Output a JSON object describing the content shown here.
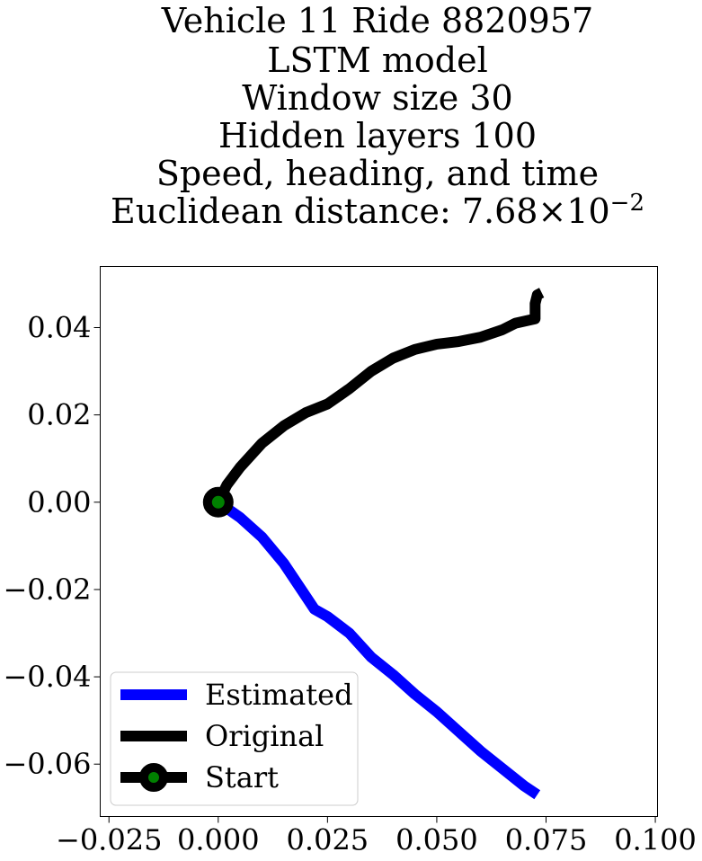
{
  "chart_data": {
    "type": "line",
    "title_lines": [
      "Vehicle 11 Ride 8820957",
      "LSTM model",
      "Window size 30",
      "Hidden layers 100",
      "Speed, heading, and time"
    ],
    "title_metric": {
      "prefix": "Euclidean distance: ",
      "mantissa": "7.68",
      "times": "×",
      "base": "10",
      "exponent": "−2"
    },
    "xlim": [
      -0.027,
      0.1005
    ],
    "ylim": [
      -0.072,
      0.054
    ],
    "x_ticks": [
      {
        "value": -0.025,
        "label": "−0.025"
      },
      {
        "value": 0.0,
        "label": "0.000"
      },
      {
        "value": 0.025,
        "label": "0.025"
      },
      {
        "value": 0.05,
        "label": "0.050"
      },
      {
        "value": 0.075,
        "label": "0.075"
      },
      {
        "value": 0.1,
        "label": "0.100"
      }
    ],
    "y_ticks": [
      {
        "value": 0.04,
        "label": "0.04"
      },
      {
        "value": 0.02,
        "label": "0.02"
      },
      {
        "value": 0.0,
        "label": "0.00"
      },
      {
        "value": -0.02,
        "label": "−0.02"
      },
      {
        "value": -0.04,
        "label": "−0.04"
      },
      {
        "value": -0.06,
        "label": "−0.06"
      }
    ],
    "grid": false,
    "legend_position": "lower-left",
    "series": [
      {
        "name": "Estimated",
        "color": "#0000ff",
        "x": [
          0.0,
          0.005,
          0.01,
          0.015,
          0.02,
          0.022,
          0.025,
          0.03,
          0.035,
          0.04,
          0.045,
          0.05,
          0.055,
          0.06,
          0.065,
          0.07,
          0.073
        ],
        "y": [
          0.0,
          -0.0035,
          -0.008,
          -0.014,
          -0.0215,
          -0.0245,
          -0.0262,
          -0.03,
          -0.0355,
          -0.0395,
          -0.044,
          -0.048,
          -0.0525,
          -0.057,
          -0.061,
          -0.065,
          -0.067
        ]
      },
      {
        "name": "Original",
        "color": "#000000",
        "x": [
          0.0,
          0.002,
          0.005,
          0.01,
          0.015,
          0.02,
          0.025,
          0.03,
          0.035,
          0.04,
          0.045,
          0.05,
          0.055,
          0.06,
          0.065,
          0.068,
          0.0725,
          0.0725,
          0.073,
          0.074
        ],
        "y": [
          0.0,
          0.004,
          0.008,
          0.0135,
          0.0175,
          0.0205,
          0.0225,
          0.026,
          0.03,
          0.033,
          0.035,
          0.0362,
          0.0368,
          0.0378,
          0.0395,
          0.041,
          0.042,
          0.0455,
          0.0475,
          0.048
        ]
      }
    ],
    "start_marker": {
      "name": "Start",
      "x": 0.0,
      "y": 0.0,
      "edge_color": "#000000",
      "face_color": "#008000"
    },
    "legend": [
      {
        "label": "Estimated",
        "kind": "line",
        "color": "#0000ff"
      },
      {
        "label": "Original",
        "kind": "line",
        "color": "#000000"
      },
      {
        "label": "Start",
        "kind": "marker",
        "color": "#000000",
        "face_color": "#008000"
      }
    ]
  }
}
